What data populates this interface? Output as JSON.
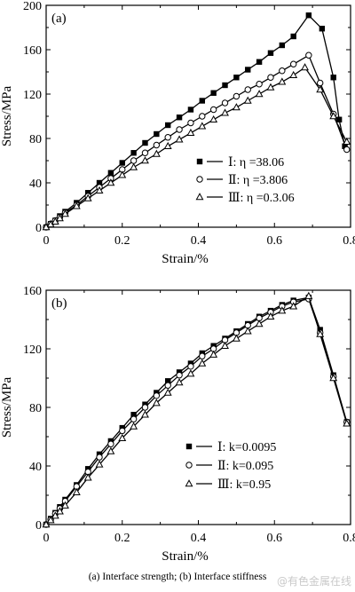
{
  "chart_data": [
    {
      "type": "line",
      "panel_label": "(a)",
      "xlabel": "Strain/%",
      "ylabel": "Stress/MPa",
      "xlim": [
        0,
        0.8
      ],
      "ylim": [
        0,
        200
      ],
      "xticks": [
        0,
        0.2,
        0.4,
        0.6,
        0.8
      ],
      "xtick_labels": [
        "0",
        "0.2",
        "0.4",
        "0.6",
        "0.8"
      ],
      "yticks": [
        0,
        40,
        80,
        120,
        160,
        200
      ],
      "ytick_labels": [
        "0",
        "40",
        "80",
        "120",
        "160",
        "200"
      ],
      "legend_position": "lower-right",
      "series": [
        {
          "name": "Ⅰ: η =38.06",
          "marker": "square-filled",
          "x": [
            0,
            0.012,
            0.024,
            0.036,
            0.05,
            0.08,
            0.11,
            0.14,
            0.17,
            0.2,
            0.23,
            0.26,
            0.29,
            0.32,
            0.35,
            0.38,
            0.41,
            0.44,
            0.47,
            0.5,
            0.53,
            0.56,
            0.59,
            0.62,
            0.65,
            0.69,
            0.725,
            0.755,
            0.77,
            0.785
          ],
          "y": [
            0,
            3,
            6,
            10,
            14,
            22,
            31,
            40,
            49,
            58,
            67,
            76,
            84,
            92,
            99,
            106,
            114,
            121,
            128,
            135,
            142,
            149,
            157,
            164,
            172,
            191,
            179,
            135,
            97,
            73
          ]
        },
        {
          "name": "Ⅱ: η =3.806",
          "marker": "circle-open",
          "x": [
            0,
            0.012,
            0.024,
            0.036,
            0.05,
            0.08,
            0.11,
            0.14,
            0.17,
            0.2,
            0.23,
            0.26,
            0.29,
            0.32,
            0.35,
            0.38,
            0.41,
            0.44,
            0.47,
            0.5,
            0.53,
            0.56,
            0.59,
            0.62,
            0.65,
            0.69,
            0.72,
            0.755,
            0.79
          ],
          "y": [
            0,
            3,
            6,
            9,
            13,
            20,
            28,
            36,
            44,
            52,
            60,
            67,
            74,
            81,
            88,
            94,
            100,
            106,
            112,
            118,
            124,
            129,
            135,
            141,
            147,
            155,
            130,
            102,
            70
          ]
        },
        {
          "name": "Ⅲ: η =0.3.06",
          "marker": "triangle-open",
          "x": [
            0,
            0.012,
            0.024,
            0.036,
            0.05,
            0.08,
            0.11,
            0.14,
            0.17,
            0.2,
            0.23,
            0.26,
            0.29,
            0.32,
            0.35,
            0.38,
            0.41,
            0.44,
            0.47,
            0.5,
            0.53,
            0.56,
            0.59,
            0.62,
            0.65,
            0.68,
            0.72,
            0.755,
            0.79
          ],
          "y": [
            0,
            2.5,
            5,
            8,
            12,
            19,
            26,
            33,
            40,
            47,
            54,
            60,
            66,
            73,
            79,
            85,
            91,
            97,
            103,
            108,
            114,
            120,
            126,
            131,
            137,
            144,
            124,
            100,
            77
          ]
        }
      ]
    },
    {
      "type": "line",
      "panel_label": "(b)",
      "xlabel": "Strain/%",
      "ylabel": "Stress/MPa",
      "xlim": [
        0,
        0.8
      ],
      "ylim": [
        0,
        160
      ],
      "xticks": [
        0,
        0.2,
        0.4,
        0.6,
        0.8
      ],
      "xtick_labels": [
        "0",
        "0.2",
        "0.4",
        "0.6",
        "0.8"
      ],
      "yticks": [
        0,
        40,
        80,
        120,
        160
      ],
      "ytick_labels": [
        "0",
        "40",
        "80",
        "120",
        "160"
      ],
      "legend_position": "lower-right",
      "series": [
        {
          "name": "Ⅰ: k=0.0095",
          "marker": "square-filled",
          "x": [
            0,
            0.012,
            0.024,
            0.036,
            0.05,
            0.08,
            0.11,
            0.14,
            0.17,
            0.2,
            0.23,
            0.26,
            0.29,
            0.32,
            0.35,
            0.38,
            0.41,
            0.44,
            0.47,
            0.5,
            0.53,
            0.56,
            0.59,
            0.62,
            0.65,
            0.69,
            0.72,
            0.755,
            0.79
          ],
          "y": [
            0,
            4,
            8,
            12,
            17,
            27,
            38,
            48,
            57,
            66,
            75,
            82,
            90,
            98,
            104,
            110,
            117,
            122,
            127,
            132,
            137,
            142,
            146,
            150,
            153,
            155,
            133,
            102,
            70
          ]
        },
        {
          "name": "Ⅱ: k=0.095",
          "marker": "circle-open",
          "x": [
            0,
            0.012,
            0.024,
            0.036,
            0.05,
            0.08,
            0.11,
            0.14,
            0.17,
            0.2,
            0.23,
            0.26,
            0.29,
            0.32,
            0.35,
            0.38,
            0.41,
            0.44,
            0.47,
            0.5,
            0.53,
            0.56,
            0.59,
            0.62,
            0.65,
            0.69,
            0.72,
            0.755,
            0.79
          ],
          "y": [
            0,
            3.5,
            7.5,
            11,
            16,
            26,
            36,
            46,
            55,
            64,
            72,
            80,
            88,
            95,
            102,
            108,
            115,
            120,
            126,
            131,
            136,
            141,
            145,
            149,
            152,
            154,
            131,
            101,
            70
          ]
        },
        {
          "name": "Ⅲ: k=0.95",
          "marker": "triangle-open",
          "x": [
            0,
            0.012,
            0.024,
            0.036,
            0.05,
            0.08,
            0.11,
            0.14,
            0.17,
            0.2,
            0.23,
            0.26,
            0.29,
            0.32,
            0.35,
            0.38,
            0.41,
            0.44,
            0.47,
            0.5,
            0.53,
            0.56,
            0.59,
            0.62,
            0.65,
            0.69,
            0.72,
            0.755,
            0.79
          ],
          "y": [
            0,
            3,
            6,
            9,
            13,
            22,
            32,
            41,
            50,
            59,
            67,
            75,
            83,
            90,
            97,
            103,
            110,
            116,
            122,
            127,
            132,
            137,
            142,
            146,
            149,
            156,
            130,
            100,
            69
          ]
        }
      ]
    }
  ],
  "caption": "(a)  Interface  strength;  (b)  Interface stiffness",
  "watermark": "@有色金属在线"
}
